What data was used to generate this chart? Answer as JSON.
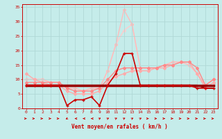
{
  "title": "",
  "xlabel": "Vent moyen/en rafales ( km/h )",
  "background_color": "#c5ecea",
  "grid_color": "#b0d8d6",
  "xlim": [
    -0.5,
    23.5
  ],
  "ylim": [
    0,
    36
  ],
  "yticks": [
    0,
    5,
    10,
    15,
    20,
    25,
    30,
    35
  ],
  "xticks": [
    0,
    1,
    2,
    3,
    4,
    5,
    6,
    7,
    8,
    9,
    10,
    11,
    12,
    13,
    14,
    15,
    16,
    17,
    18,
    19,
    20,
    21,
    22,
    23
  ],
  "series": [
    {
      "x": [
        0,
        1,
        2,
        3,
        4,
        5,
        6,
        7,
        8,
        9,
        10,
        11,
        12,
        13,
        14,
        15,
        16,
        17,
        18,
        19,
        20,
        21,
        22,
        23
      ],
      "y": [
        8,
        8,
        8,
        8,
        8,
        1,
        3,
        3,
        4,
        1,
        8,
        12,
        19,
        19,
        8,
        8,
        8,
        8,
        8,
        8,
        8,
        7,
        7,
        7
      ],
      "color": "#cc0000",
      "lw": 1.2,
      "marker": "+",
      "ms": 3,
      "zorder": 5
    },
    {
      "x": [
        0,
        1,
        2,
        3,
        4,
        5,
        6,
        7,
        8,
        9,
        10,
        11,
        12,
        13,
        14,
        15,
        16,
        17,
        18,
        19,
        20,
        21,
        22,
        23
      ],
      "y": [
        8,
        8,
        8,
        8,
        8,
        8,
        8,
        8,
        8,
        8,
        8,
        8,
        8,
        8,
        8,
        8,
        8,
        8,
        8,
        8,
        8,
        8,
        8,
        8
      ],
      "color": "#990000",
      "lw": 2.5,
      "marker": null,
      "ms": 0,
      "zorder": 4
    },
    {
      "x": [
        0,
        1,
        2,
        3,
        4,
        5,
        6,
        7,
        8,
        9,
        10,
        11,
        12,
        13,
        14,
        15,
        16,
        17,
        18,
        19,
        20,
        21,
        22,
        23
      ],
      "y": [
        8,
        8,
        8,
        8,
        8,
        8,
        8,
        8,
        8,
        8,
        8,
        8,
        8,
        8,
        8,
        8,
        8,
        8,
        8,
        8,
        8,
        8,
        8,
        8
      ],
      "color": "#cc0000",
      "lw": 1.0,
      "marker": null,
      "ms": 0,
      "zorder": 3
    },
    {
      "x": [
        0,
        1,
        2,
        3,
        4,
        5,
        6,
        7,
        8,
        9,
        10,
        11,
        12,
        13,
        14,
        15,
        16,
        17,
        18,
        19,
        20,
        21,
        22,
        23
      ],
      "y": [
        8,
        8,
        8,
        8,
        8,
        8,
        8,
        8,
        8,
        8,
        8,
        8,
        8,
        8,
        8,
        8,
        8,
        8,
        8,
        8,
        8,
        8,
        7,
        7
      ],
      "color": "#880000",
      "lw": 1.2,
      "marker": null,
      "ms": 0,
      "zorder": 3
    },
    {
      "x": [
        0,
        1,
        2,
        3,
        4,
        5,
        6,
        7,
        8,
        9,
        10,
        11,
        12,
        13,
        14,
        15,
        16,
        17,
        18,
        19,
        20,
        21,
        22,
        23
      ],
      "y": [
        12,
        10,
        9,
        8,
        8,
        6,
        5,
        5,
        5,
        6,
        9,
        11,
        12,
        13,
        13,
        13,
        14,
        14,
        15,
        16,
        16,
        12,
        7,
        9
      ],
      "color": "#ffaaaa",
      "lw": 1.0,
      "marker": "D",
      "ms": 2,
      "zorder": 2
    },
    {
      "x": [
        0,
        1,
        2,
        3,
        4,
        5,
        6,
        7,
        8,
        9,
        10,
        11,
        12,
        13,
        14,
        15,
        16,
        17,
        18,
        19,
        20,
        21,
        22,
        23
      ],
      "y": [
        9,
        9,
        9,
        9,
        9,
        7,
        6,
        6,
        6,
        7,
        10,
        13,
        14,
        14,
        14,
        14,
        14,
        15,
        15,
        16,
        16,
        14,
        8,
        10
      ],
      "color": "#ff8888",
      "lw": 1.0,
      "marker": "D",
      "ms": 2,
      "zorder": 2
    },
    {
      "x": [
        0,
        1,
        2,
        3,
        4,
        5,
        6,
        7,
        8,
        9,
        10,
        11,
        12,
        13,
        14,
        15,
        16,
        17,
        18,
        19,
        20,
        21,
        22,
        23
      ],
      "y": [
        10,
        10,
        10,
        9,
        9,
        7,
        7,
        6,
        7,
        7,
        13,
        22,
        27,
        29,
        14,
        14,
        14,
        15,
        16,
        16,
        15,
        12,
        8,
        10
      ],
      "color": "#ffcccc",
      "lw": 1.0,
      "marker": "D",
      "ms": 2,
      "zorder": 1
    },
    {
      "x": [
        0,
        1,
        2,
        3,
        4,
        5,
        6,
        7,
        8,
        9,
        10,
        11,
        12,
        13,
        14,
        15,
        16,
        17,
        18,
        19,
        20,
        21,
        22,
        23
      ],
      "y": [
        10,
        10,
        10,
        9,
        9,
        7,
        7,
        6,
        7,
        7,
        13,
        22,
        34,
        29,
        14,
        14,
        14,
        15,
        16,
        16,
        15,
        12,
        8,
        10
      ],
      "color": "#ffbbbb",
      "lw": 1.0,
      "marker": "D",
      "ms": 2,
      "zorder": 1
    }
  ],
  "wind_arrows": {
    "x": [
      0,
      1,
      2,
      3,
      4,
      5,
      6,
      7,
      8,
      9,
      10,
      11,
      12,
      13,
      14,
      15,
      16,
      17,
      18,
      19,
      20,
      21,
      22,
      23
    ],
    "dirs": [
      0,
      0,
      0,
      0,
      0,
      225,
      270,
      270,
      270,
      45,
      45,
      45,
      45,
      45,
      45,
      0,
      0,
      0,
      0,
      0,
      0,
      0,
      0,
      0
    ],
    "color": "#cc0000"
  }
}
